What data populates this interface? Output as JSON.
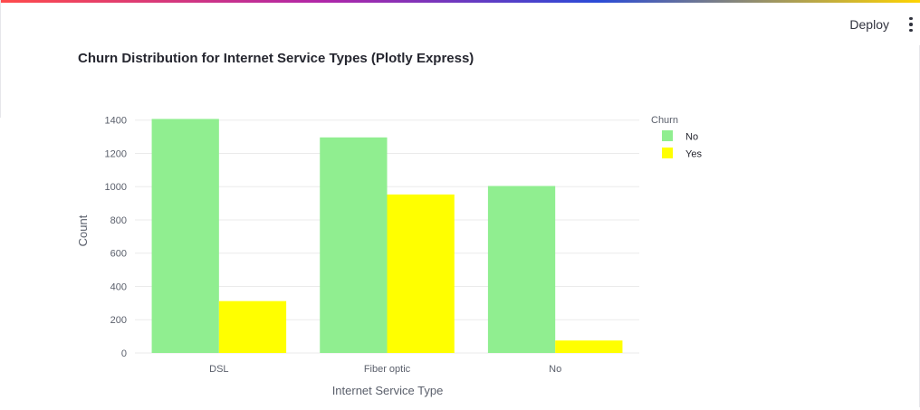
{
  "header": {
    "deploy_label": "Deploy",
    "menu_icon": "kebab-menu-icon"
  },
  "colors": {
    "no": "#90ee90",
    "yes": "#ffff00",
    "grid": "#ebebeb",
    "tick_text": "#5a5f6b",
    "axis_title": "#5a5f6b"
  },
  "chart_data": {
    "type": "bar",
    "title": "Churn Distribution for Internet Service Types (Plotly Express)",
    "xlabel": "Internet Service Type",
    "ylabel": "Count",
    "categories": [
      "DSL",
      "Fiber optic",
      "No"
    ],
    "series": [
      {
        "name": "No",
        "values": [
          1407,
          1296,
          1004
        ]
      },
      {
        "name": "Yes",
        "values": [
          312,
          953,
          75
        ]
      }
    ],
    "ylim": [
      0,
      1480
    ],
    "yticks": [
      0,
      200,
      400,
      600,
      800,
      1000,
      1200,
      1400
    ],
    "grid": true,
    "legend": {
      "title": "Churn",
      "position": "top-right"
    },
    "barmode": "group"
  }
}
